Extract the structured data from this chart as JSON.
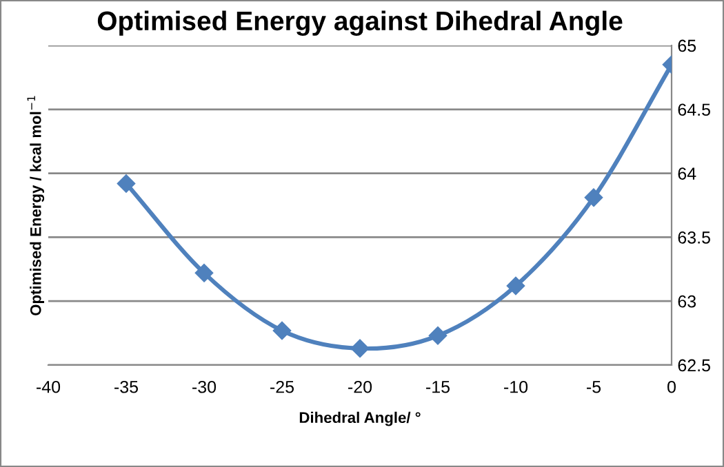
{
  "chart_data": {
    "type": "line",
    "title": "Optimised Energy against Dihedral Angle",
    "xlabel": "Dihedral Angle/ °",
    "ylabel": "Optimised Energy / kcal mol$^{−1}$",
    "x": [
      -35,
      -30,
      -25,
      -20,
      -15,
      -10,
      -5,
      0
    ],
    "series": [
      {
        "color": "#4f81bd",
        "values": [
          63.92,
          63.22,
          62.77,
          62.63,
          62.73,
          63.12,
          63.81,
          64.85
        ]
      }
    ],
    "xlim": [
      -40,
      0
    ],
    "xticks": [
      -40,
      -35,
      -30,
      -25,
      -20,
      -15,
      -10,
      -5,
      0
    ],
    "ylim": [
      62.5,
      65
    ],
    "yticks": [
      62.5,
      63,
      63.5,
      64,
      64.5,
      65
    ],
    "grid": "y",
    "marker": "diamond",
    "line_style": "solid",
    "legend": false
  }
}
